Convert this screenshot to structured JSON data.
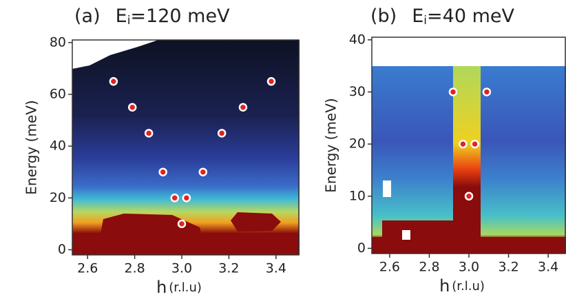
{
  "chart_data": [
    {
      "type": "scatter",
      "panel_label": "(a)",
      "title_main": "E",
      "title_sub": "i",
      "title_rest": "=120 meV",
      "ylabel": "Energy (meV)",
      "xlabel_main": "h",
      "xlabel_unit": "(r.l.u)",
      "xlim": [
        2.535,
        3.5
      ],
      "ylim": [
        -2,
        81
      ],
      "xticks": [
        {
          "value": 2.6,
          "label": "2.6"
        },
        {
          "value": 2.8,
          "label": "2.8"
        },
        {
          "value": 3.0,
          "label": "3.0"
        },
        {
          "value": 3.2,
          "label": "3.2"
        },
        {
          "value": 3.4,
          "label": "3.4"
        }
      ],
      "yticks": [
        0,
        20,
        40,
        60,
        80
      ],
      "series": [
        {
          "color": "#e32222",
          "x": [
            2.71,
            3.38,
            2.79,
            3.26,
            2.86,
            3.17,
            2.92,
            3.09,
            2.97,
            3.02,
            3.0
          ],
          "values": [
            65,
            65,
            55,
            55,
            45,
            45,
            30,
            30,
            20,
            20,
            10
          ]
        }
      ]
    },
    {
      "type": "scatter",
      "panel_label": "(b)",
      "title_main": "E",
      "title_sub": "i",
      "title_rest": "=40 meV",
      "ylabel": "Energy (meV)",
      "xlabel_main": "h",
      "xlabel_unit": "(r.l.u)",
      "xlim": [
        2.51,
        3.49
      ],
      "ylim": [
        -1,
        40.5
      ],
      "xticks": [
        {
          "value": 2.6,
          "label": "2.6"
        },
        {
          "value": 2.8,
          "label": "2.8"
        },
        {
          "value": 3.0,
          "label": "3.0"
        },
        {
          "value": 3.2,
          "label": "3.2"
        },
        {
          "value": 3.4,
          "label": "3.4"
        }
      ],
      "yticks": [
        0,
        10,
        20,
        30,
        40
      ],
      "series": [
        {
          "color": "#e32222",
          "x": [
            2.92,
            3.09,
            2.97,
            3.03,
            3.0
          ],
          "values": [
            30,
            30,
            20,
            20,
            10
          ]
        }
      ]
    }
  ]
}
